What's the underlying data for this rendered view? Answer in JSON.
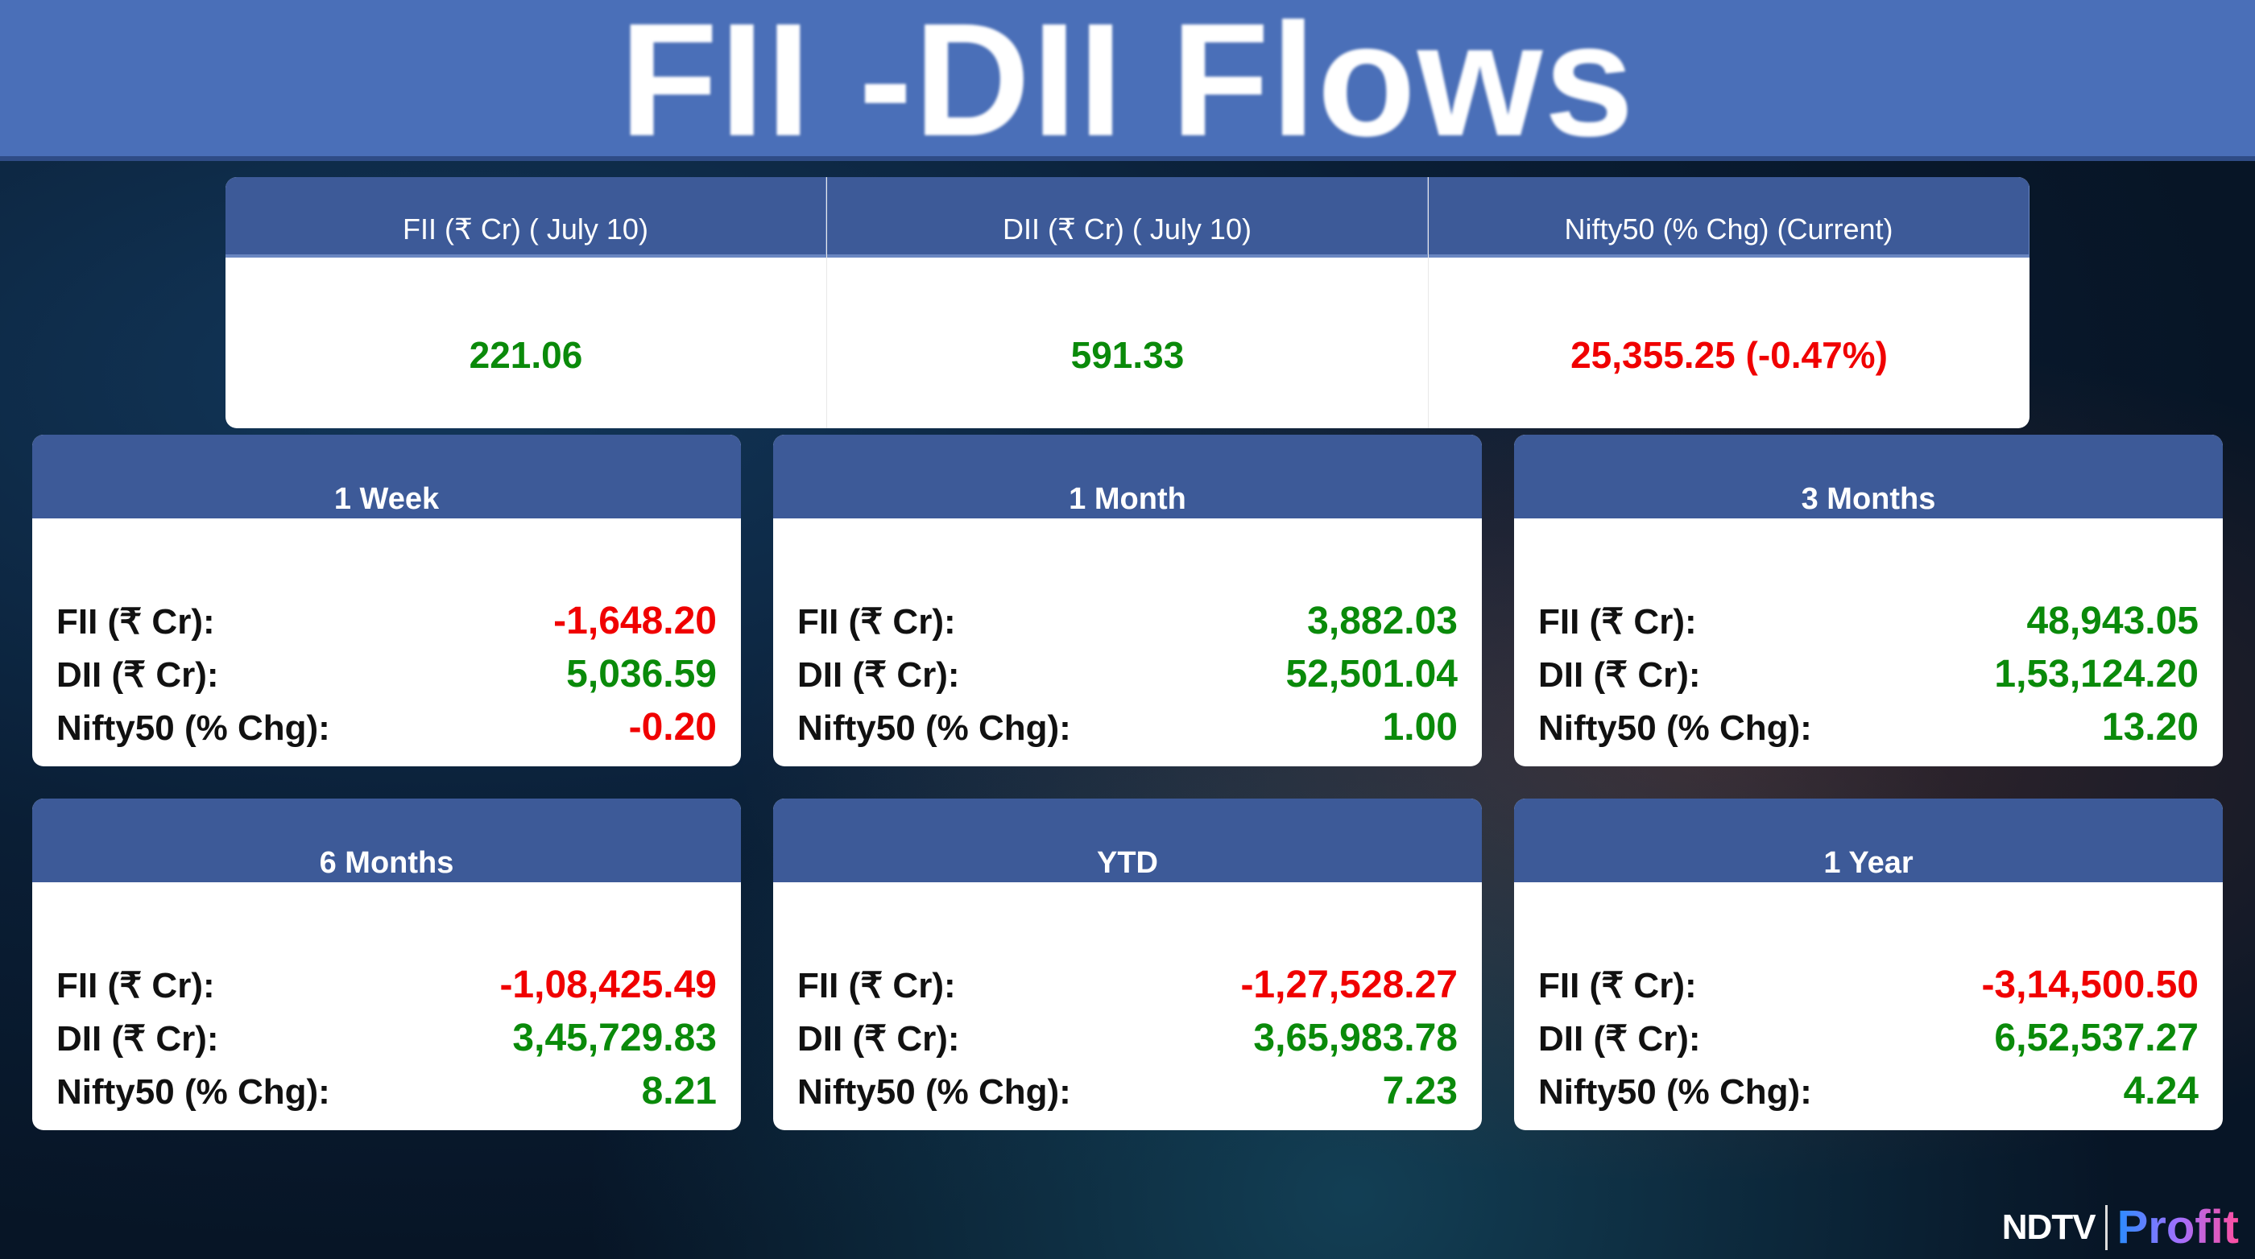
{
  "title": "FII -DII Flows",
  "colors": {
    "positive": "#0a8a0a",
    "negative": "#f00000",
    "header": "#3d5a98"
  },
  "top": [
    {
      "header": "FII (₹ Cr) ( July 10)",
      "value": "221.06",
      "sign": "g"
    },
    {
      "header": "DII (₹ Cr) ( July 10)",
      "value": "591.33",
      "sign": "g"
    },
    {
      "header": "Nifty50 (% Chg) (Current)",
      "value": "25,355.25 (-0.47%)",
      "sign": "r"
    }
  ],
  "labels": {
    "fii": "FII (₹ Cr):",
    "dii": "DII (₹ Cr):",
    "nifty": "Nifty50 (% Chg):"
  },
  "cards": [
    {
      "period": "1 Week",
      "fii": "-1,648.20",
      "dii": "5,036.59",
      "nifty": "-0.20",
      "c": [
        "r",
        "g",
        "r"
      ]
    },
    {
      "period": "1 Month",
      "fii": "3,882.03",
      "dii": "52,501.04",
      "nifty": "1.00",
      "c": [
        "g",
        "g",
        "g"
      ]
    },
    {
      "period": "3 Months",
      "fii": "48,943.05",
      "dii": "1,53,124.20",
      "nifty": "13.20",
      "c": [
        "g",
        "g",
        "g"
      ]
    },
    {
      "period": "6 Months",
      "fii": "-1,08,425.49",
      "dii": "3,45,729.83",
      "nifty": "8.21",
      "c": [
        "r",
        "g",
        "g"
      ]
    },
    {
      "period": "YTD",
      "fii": "-1,27,528.27",
      "dii": "3,65,983.78",
      "nifty": "7.23",
      "c": [
        "r",
        "g",
        "g"
      ]
    },
    {
      "period": "1 Year",
      "fii": "-3,14,500.50",
      "dii": "6,52,537.27",
      "nifty": "4.24",
      "c": [
        "r",
        "g",
        "g"
      ]
    }
  ],
  "logo": {
    "left": "NDTV",
    "right": "Profit"
  }
}
